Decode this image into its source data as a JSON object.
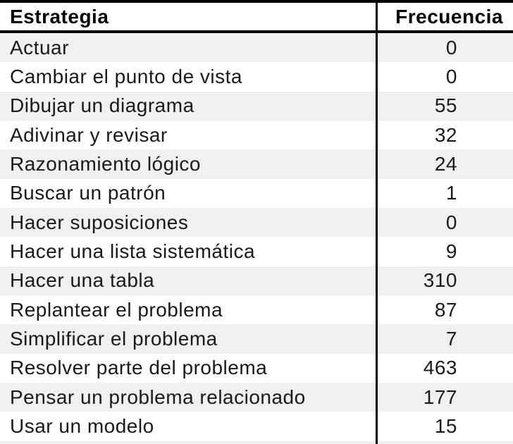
{
  "chart_data": {
    "type": "table",
    "title": "",
    "columns": [
      "Estrategia",
      "Frecuencia"
    ],
    "categories": [
      "Actuar",
      "Cambiar el punto de vista",
      "Dibujar un diagrama",
      "Adivinar y revisar",
      "Razonamiento lógico",
      "Buscar un patrón",
      "Hacer suposiciones",
      "Hacer una lista sistemática",
      "Hacer una tabla",
      "Replantear el problema",
      "Simplificar el problema",
      "Resolver parte del problema",
      "Pensar un problema relacionado",
      "Usar un modelo"
    ],
    "values": [
      0,
      0,
      55,
      32,
      24,
      1,
      0,
      9,
      310,
      87,
      7,
      463,
      177,
      15
    ],
    "layout": {
      "stripe_rows": true,
      "value_alignment": "right",
      "grid": "horizontal-header-and-column-divider"
    }
  },
  "colors": {
    "border": "#000000",
    "stripe": "#f0f0f0",
    "background": "#ffffff",
    "text": "#1a1a1a"
  }
}
